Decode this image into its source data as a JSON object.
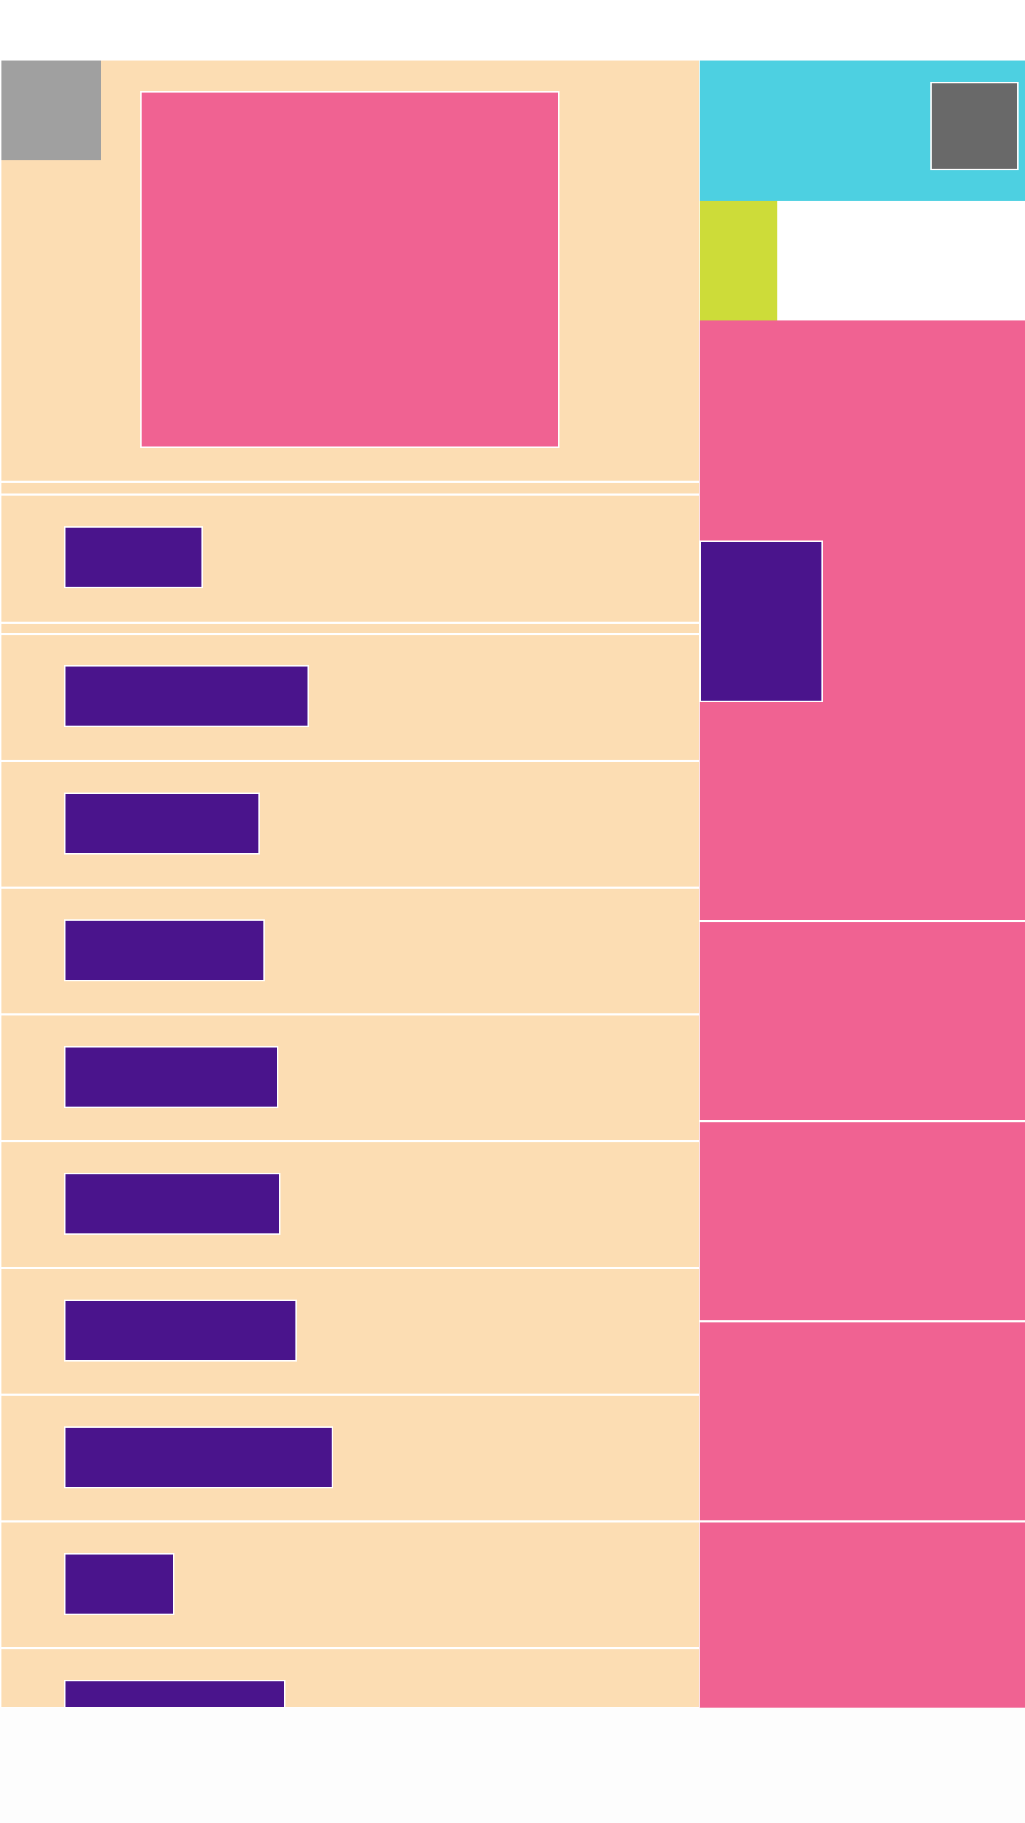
{
  "colors": {
    "panel": "#fcddb3",
    "accent_pink": "#f06292",
    "tag_purple": "#4a148c",
    "banner_cyan": "#4dd0e1",
    "chip_lime": "#cddc39",
    "thumb_gray": "#a0a0a0",
    "avatar_gray": "#696969"
  },
  "icons": {
    "corner": "image-placeholder-icon",
    "avatar": "avatar-placeholder-icon"
  },
  "list": {
    "items": [
      {
        "label": ""
      },
      {
        "label": ""
      },
      {
        "label": ""
      },
      {
        "label": ""
      },
      {
        "label": ""
      },
      {
        "label": ""
      },
      {
        "label": ""
      },
      {
        "label": ""
      },
      {
        "label": ""
      },
      {
        "label": ""
      }
    ]
  }
}
